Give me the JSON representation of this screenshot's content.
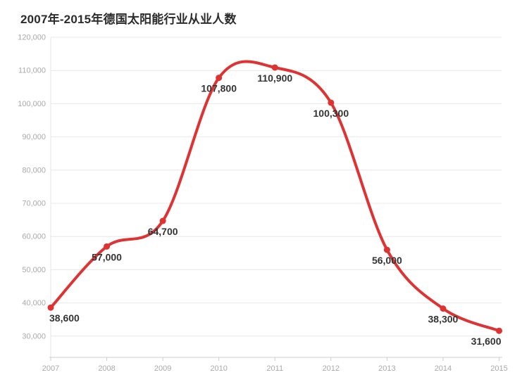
{
  "page": {
    "background": "#ffffff"
  },
  "chart_data": {
    "type": "line",
    "title": "2007年-2015年德国太阳能行业从业人数",
    "categories": [
      "2007",
      "2008",
      "2009",
      "2010",
      "2011",
      "2012",
      "2013",
      "2014",
      "2015"
    ],
    "series": [
      {
        "values": [
          38600,
          57000,
          64700,
          107800,
          110900,
          100300,
          56000,
          38300,
          31600
        ],
        "value_labels": [
          "38,600",
          "57,000",
          "64,700",
          "107,800",
          "110,900",
          "100,300",
          "56,000",
          "38,300",
          "31,600"
        ]
      }
    ],
    "xlabel": "",
    "ylabel": "",
    "ylim": [
      30000,
      120000
    ],
    "ytick_step": 10000,
    "ytick_labels": [
      "30,000",
      "40,000",
      "50,000",
      "60,000",
      "70,000",
      "80,000",
      "90,000",
      "100,000",
      "110,000",
      "120,000"
    ],
    "grid": true,
    "legend": "none",
    "smooth": true,
    "colors": {
      "line": "#de3333",
      "marker": "#de3333",
      "grid": "#e8e8e8",
      "y_axis_line": "#e6e6e6",
      "x_axis_line": "#cccccc",
      "tick": "#cccccc",
      "axis_text": "#a9a9a9",
      "data_label": "#333333",
      "title_text": "#2b2b2b"
    }
  }
}
